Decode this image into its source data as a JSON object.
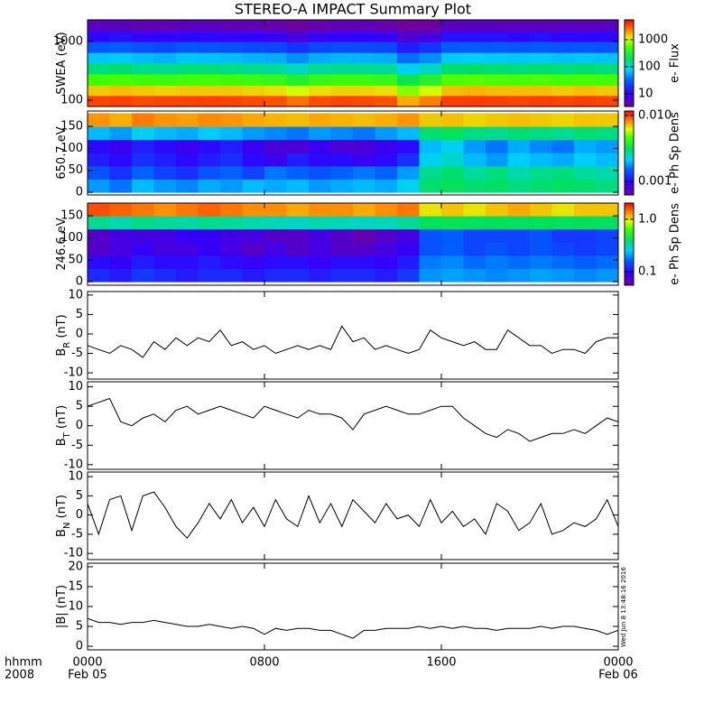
{
  "title": "STEREO-A IMPACT Summary Plot",
  "timestamp": "Wed Jun  8 13:48:16 2016",
  "x_axis": {
    "xlim": [
      0,
      24
    ],
    "xticks": [
      {
        "value": 0,
        "label": "0000"
      },
      {
        "value": 8,
        "label": "0800"
      },
      {
        "value": 16,
        "label": "1600"
      },
      {
        "value": 24,
        "label": "0000"
      }
    ],
    "date_labels": [
      {
        "value": 0,
        "label": "Feb 05"
      },
      {
        "value": 24,
        "label": "Feb 06"
      }
    ],
    "label": [
      "hhmm",
      "2008"
    ]
  },
  "chart_data": [
    {
      "type": "heatmap",
      "ylabel": [
        "SWEA (eV)"
      ],
      "zlabel": "e- Flux",
      "log": true,
      "zlog": true,
      "ylim": [
        78,
        2340
      ],
      "yticks": [
        100,
        1000
      ],
      "zlim": [
        3.4,
        5400
      ],
      "zticks": [
        10,
        100,
        1000
      ],
      "x_edges": [
        0,
        1,
        2,
        3,
        4,
        5,
        6,
        7,
        8,
        9,
        10,
        11,
        12,
        13,
        14,
        15,
        16,
        17,
        18,
        19,
        20,
        21,
        22,
        23,
        24
      ],
      "y_edges": [
        80,
        120,
        180,
        280,
        430,
        650,
        1000,
        1500,
        2300
      ],
      "values": [
        [
          3500,
          3600,
          3400,
          3500,
          3500,
          3600,
          3500,
          3400,
          3200,
          2600,
          3300,
          3500,
          3400,
          3200,
          1800,
          2400,
          3600,
          3700,
          3600,
          3500,
          3600,
          3500,
          3600,
          3500
        ],
        [
          1500,
          1600,
          1500,
          1400,
          1500,
          1500,
          1500,
          1400,
          1300,
          1000,
          1300,
          1400,
          1400,
          1300,
          700,
          1000,
          1600,
          1700,
          1600,
          1600,
          1600,
          1500,
          1600,
          1500
        ],
        [
          500,
          520,
          480,
          460,
          500,
          500,
          480,
          450,
          420,
          320,
          420,
          460,
          450,
          420,
          230,
          330,
          540,
          560,
          540,
          520,
          540,
          500,
          520,
          500
        ],
        [
          170,
          180,
          160,
          150,
          170,
          170,
          160,
          150,
          140,
          110,
          140,
          150,
          150,
          140,
          80,
          110,
          180,
          190,
          180,
          170,
          180,
          170,
          180,
          170
        ],
        [
          70,
          72,
          65,
          60,
          70,
          68,
          65,
          60,
          58,
          45,
          58,
          62,
          60,
          58,
          35,
          45,
          72,
          75,
          72,
          70,
          72,
          68,
          70,
          68
        ],
        [
          28,
          30,
          26,
          24,
          28,
          27,
          26,
          24,
          23,
          18,
          23,
          25,
          24,
          23,
          14,
          18,
          29,
          30,
          29,
          28,
          29,
          27,
          28,
          27
        ],
        [
          11,
          12,
          10,
          10,
          11,
          11,
          10,
          10,
          9,
          7,
          9,
          10,
          10,
          9,
          6,
          7,
          12,
          12,
          12,
          11,
          12,
          11,
          11,
          11
        ],
        [
          5,
          5,
          4.5,
          4.5,
          5,
          5,
          4.5,
          4.5,
          4,
          3.5,
          4,
          4.5,
          4.5,
          4,
          3,
          3.5,
          5,
          5,
          5,
          5,
          5,
          5,
          5,
          5
        ]
      ]
    },
    {
      "type": "heatmap",
      "ylabel": [
        "650.7 eV"
      ],
      "zlabel": "e- Ph Sp Dens",
      "log": false,
      "zlog": true,
      "ylim": [
        -6,
        185
      ],
      "yticks": [
        0,
        50,
        100,
        150
      ],
      "zlim": [
        0.00062,
        0.0117
      ],
      "zticks": [
        0.001,
        {
          "value": 0.01,
          "label": "0.010"
        }
      ],
      "x_edges": [
        0,
        1,
        2,
        3,
        4,
        5,
        6,
        7,
        8,
        9,
        10,
        11,
        12,
        13,
        14,
        15,
        16,
        17,
        18,
        19,
        20,
        21,
        22,
        23,
        24
      ],
      "y_edges": [
        0,
        30,
        60,
        90,
        120,
        150,
        180
      ],
      "values": [
        [
          0.0018,
          0.0016,
          0.002,
          0.0018,
          0.0017,
          0.0019,
          0.0018,
          0.002,
          0.0019,
          0.002,
          0.0018,
          0.0019,
          0.002,
          0.0019,
          0.0022,
          0.003,
          0.0032,
          0.003,
          0.0031,
          0.0029,
          0.003,
          0.0031,
          0.003,
          0.0029
        ],
        [
          0.0014,
          0.0012,
          0.0015,
          0.0013,
          0.0012,
          0.0014,
          0.0015,
          0.0013,
          0.0016,
          0.0015,
          0.0014,
          0.0015,
          0.0016,
          0.0015,
          0.0018,
          0.0028,
          0.003,
          0.0027,
          0.0029,
          0.0026,
          0.0028,
          0.0029,
          0.0027,
          0.0026
        ],
        [
          0.0011,
          0.001,
          0.0012,
          0.0011,
          0.001,
          0.0011,
          0.0012,
          0.001,
          0.0009,
          0.0011,
          0.001,
          0.001,
          0.0009,
          0.001,
          0.0012,
          0.0022,
          0.0024,
          0.002,
          0.0018,
          0.0021,
          0.002,
          0.0019,
          0.0021,
          0.002
        ],
        [
          0.001,
          0.0009,
          0.0011,
          0.001,
          0.0009,
          0.001,
          0.0011,
          0.0009,
          0.0008,
          0.0008,
          0.0009,
          0.0008,
          0.0008,
          0.0009,
          0.001,
          0.002,
          0.0022,
          0.0018,
          0.0016,
          0.0019,
          0.0017,
          0.0016,
          0.0019,
          0.0018
        ],
        [
          0.002,
          0.0018,
          0.0022,
          0.002,
          0.0019,
          0.0021,
          0.002,
          0.0018,
          0.0017,
          0.0016,
          0.0018,
          0.0017,
          0.0016,
          0.0018,
          0.002,
          0.003,
          0.0032,
          0.0029,
          0.0028,
          0.003,
          0.0029,
          0.0028,
          0.003,
          0.0029
        ],
        [
          0.008,
          0.0075,
          0.0085,
          0.008,
          0.0078,
          0.0082,
          0.008,
          0.0076,
          0.0074,
          0.0072,
          0.0076,
          0.0074,
          0.0072,
          0.0075,
          0.008,
          0.007,
          0.0072,
          0.0068,
          0.007,
          0.0072,
          0.007,
          0.0068,
          0.0071,
          0.007
        ]
      ]
    },
    {
      "type": "heatmap",
      "ylabel": [
        "246.6 eV"
      ],
      "zlabel": "e- Ph Sp Dens",
      "log": false,
      "zlog": true,
      "ylim": [
        -8,
        179
      ],
      "yticks": [
        0,
        50,
        100,
        150
      ],
      "zlim": [
        0.055,
        2.04
      ],
      "zticks": [
        0.1,
        {
          "value": 1,
          "label": "1.0"
        }
      ],
      "x_edges": [
        0,
        1,
        2,
        3,
        4,
        5,
        6,
        7,
        8,
        9,
        10,
        11,
        12,
        13,
        14,
        15,
        16,
        17,
        18,
        19,
        20,
        21,
        22,
        23,
        24
      ],
      "y_edges": [
        0,
        30,
        60,
        90,
        120,
        150,
        180
      ],
      "values": [
        [
          0.12,
          0.11,
          0.13,
          0.12,
          0.11,
          0.12,
          0.12,
          0.11,
          0.12,
          0.12,
          0.11,
          0.12,
          0.12,
          0.11,
          0.13,
          0.2,
          0.21,
          0.2,
          0.19,
          0.2,
          0.21,
          0.2,
          0.19,
          0.2
        ],
        [
          0.1,
          0.09,
          0.11,
          0.1,
          0.1,
          0.11,
          0.1,
          0.09,
          0.1,
          0.1,
          0.09,
          0.1,
          0.1,
          0.09,
          0.11,
          0.18,
          0.19,
          0.17,
          0.18,
          0.17,
          0.18,
          0.17,
          0.16,
          0.17
        ],
        [
          0.07,
          0.08,
          0.09,
          0.08,
          0.08,
          0.09,
          0.08,
          0.07,
          0.08,
          0.07,
          0.08,
          0.07,
          0.07,
          0.08,
          0.09,
          0.15,
          0.16,
          0.14,
          0.15,
          0.14,
          0.15,
          0.14,
          0.13,
          0.14
        ],
        [
          0.07,
          0.08,
          0.08,
          0.08,
          0.09,
          0.09,
          0.08,
          0.08,
          0.07,
          0.07,
          0.08,
          0.07,
          0.06,
          0.07,
          0.08,
          0.15,
          0.16,
          0.14,
          0.14,
          0.14,
          0.15,
          0.13,
          0.13,
          0.14
        ],
        [
          0.35,
          0.32,
          0.36,
          0.34,
          0.33,
          0.35,
          0.34,
          0.32,
          0.31,
          0.3,
          0.32,
          0.31,
          0.3,
          0.31,
          0.34,
          0.4,
          0.42,
          0.4,
          0.41,
          0.4,
          0.41,
          0.4,
          0.41,
          0.4
        ],
        [
          1.6,
          1.5,
          1.4,
          1.3,
          1.4,
          1.5,
          1.4,
          1.3,
          1.3,
          1.2,
          1.3,
          1.3,
          1.2,
          1.3,
          1.4,
          1.0,
          1.1,
          1.0,
          1.1,
          1.2,
          1.1,
          1.0,
          1.1,
          1.1
        ]
      ]
    },
    {
      "type": "line",
      "ylabel": [
        "B",
        "R",
        " (nT)"
      ],
      "color": "#000000",
      "ylim": [
        -11.6,
        10.9
      ],
      "yticks": [
        -10,
        -5,
        0,
        5,
        10
      ],
      "x": [
        0,
        0.5,
        1,
        1.5,
        2,
        2.5,
        3,
        3.5,
        4,
        4.5,
        5,
        5.5,
        6,
        6.5,
        7,
        7.5,
        8,
        8.5,
        9,
        9.5,
        10,
        10.5,
        11,
        11.5,
        12,
        12.5,
        13,
        13.5,
        14,
        14.5,
        15,
        15.5,
        16,
        16.5,
        17,
        17.5,
        18,
        18.5,
        19,
        19.5,
        20,
        20.5,
        21,
        21.5,
        22,
        22.5,
        23,
        23.5,
        24
      ],
      "values": [
        -3,
        -4,
        -5,
        -3,
        -4,
        -6,
        -2,
        -4,
        -1,
        -3,
        -1,
        -2,
        1,
        -3,
        -2,
        -4,
        -3,
        -5,
        -4,
        -3,
        -4,
        -3,
        -4,
        2,
        -2,
        -1,
        -4,
        -3,
        -4,
        -5,
        -4,
        1,
        -1,
        -2,
        -3,
        -2,
        -4,
        -4,
        1,
        -1,
        -3,
        -3,
        -5,
        -4,
        -4,
        -5,
        -2,
        -1,
        -1
      ]
    },
    {
      "type": "line",
      "ylabel": [
        "B",
        "T",
        " (nT)"
      ],
      "color": "#000000",
      "ylim": [
        -11.2,
        11.3
      ],
      "yticks": [
        -10,
        -5,
        0,
        5,
        10
      ],
      "x": [
        0,
        0.5,
        1,
        1.5,
        2,
        2.5,
        3,
        3.5,
        4,
        4.5,
        5,
        5.5,
        6,
        6.5,
        7,
        7.5,
        8,
        8.5,
        9,
        9.5,
        10,
        10.5,
        11,
        11.5,
        12,
        12.5,
        13,
        13.5,
        14,
        14.5,
        15,
        15.5,
        16,
        16.5,
        17,
        17.5,
        18,
        18.5,
        19,
        19.5,
        20,
        20.5,
        21,
        21.5,
        22,
        22.5,
        23,
        23.5,
        24
      ],
      "values": [
        5,
        6,
        7,
        1,
        0,
        2,
        3,
        1,
        4,
        5,
        3,
        4,
        5,
        4,
        3,
        2,
        5,
        4,
        3,
        2,
        4,
        3,
        3,
        2,
        -1,
        3,
        4,
        5,
        4,
        3,
        3,
        4,
        5,
        5,
        2,
        0,
        -2,
        -3,
        -1,
        -2,
        -4,
        -3,
        -2,
        -2,
        -1,
        -2,
        0,
        2,
        1
      ]
    },
    {
      "type": "line",
      "ylabel": [
        "B",
        "N",
        " (nT)"
      ],
      "color": "#000000",
      "ylim": [
        -11.6,
        11.2
      ],
      "yticks": [
        -10,
        -5,
        0,
        5,
        10
      ],
      "x": [
        0,
        0.5,
        1,
        1.5,
        2,
        2.5,
        3,
        3.5,
        4,
        4.5,
        5,
        5.5,
        6,
        6.5,
        7,
        7.5,
        8,
        8.5,
        9,
        9.5,
        10,
        10.5,
        11,
        11.5,
        12,
        12.5,
        13,
        13.5,
        14,
        14.5,
        15,
        15.5,
        16,
        16.5,
        17,
        17.5,
        18,
        18.5,
        19,
        19.5,
        20,
        20.5,
        21,
        21.5,
        22,
        22.5,
        23,
        23.5,
        24
      ],
      "values": [
        3,
        -5,
        4,
        5,
        -4,
        5,
        6,
        2,
        -3,
        -6,
        -2,
        3,
        -1,
        4,
        -2,
        2,
        -3,
        4,
        -1,
        -3,
        5,
        -2,
        3,
        -3,
        4,
        1,
        -2,
        3,
        -1,
        0,
        -3,
        4,
        -2,
        1,
        -3,
        -1,
        -5,
        3,
        1,
        -4,
        -2,
        3,
        -5,
        -4,
        -2,
        -3,
        -1,
        4,
        -3
      ]
    },
    {
      "type": "line",
      "ylabel": [
        "|B| (nT)"
      ],
      "color": "#000000",
      "ylim": [
        -0.9,
        20.9
      ],
      "yticks": [
        0,
        5,
        10,
        15,
        20
      ],
      "x": [
        0,
        0.5,
        1,
        1.5,
        2,
        2.5,
        3,
        3.5,
        4,
        4.5,
        5,
        5.5,
        6,
        6.5,
        7,
        7.5,
        8,
        8.5,
        9,
        9.5,
        10,
        10.5,
        11,
        11.5,
        12,
        12.5,
        13,
        13.5,
        14,
        14.5,
        15,
        15.5,
        16,
        16.5,
        17,
        17.5,
        18,
        18.5,
        19,
        19.5,
        20,
        20.5,
        21,
        21.5,
        22,
        22.5,
        23,
        23.5,
        24
      ],
      "values": [
        7,
        6,
        6,
        5.5,
        6,
        6,
        6.5,
        6,
        5.5,
        5,
        5,
        5.5,
        5,
        4.5,
        5,
        4.5,
        3,
        4.5,
        4,
        4.5,
        4.5,
        4,
        4,
        3,
        2,
        4,
        4,
        4.5,
        4.5,
        4.5,
        5,
        4.5,
        5,
        4.5,
        5,
        4.5,
        4.5,
        4,
        4.5,
        4.5,
        4.5,
        5,
        4.5,
        5,
        5,
        4.5,
        4,
        3,
        4
      ]
    }
  ]
}
